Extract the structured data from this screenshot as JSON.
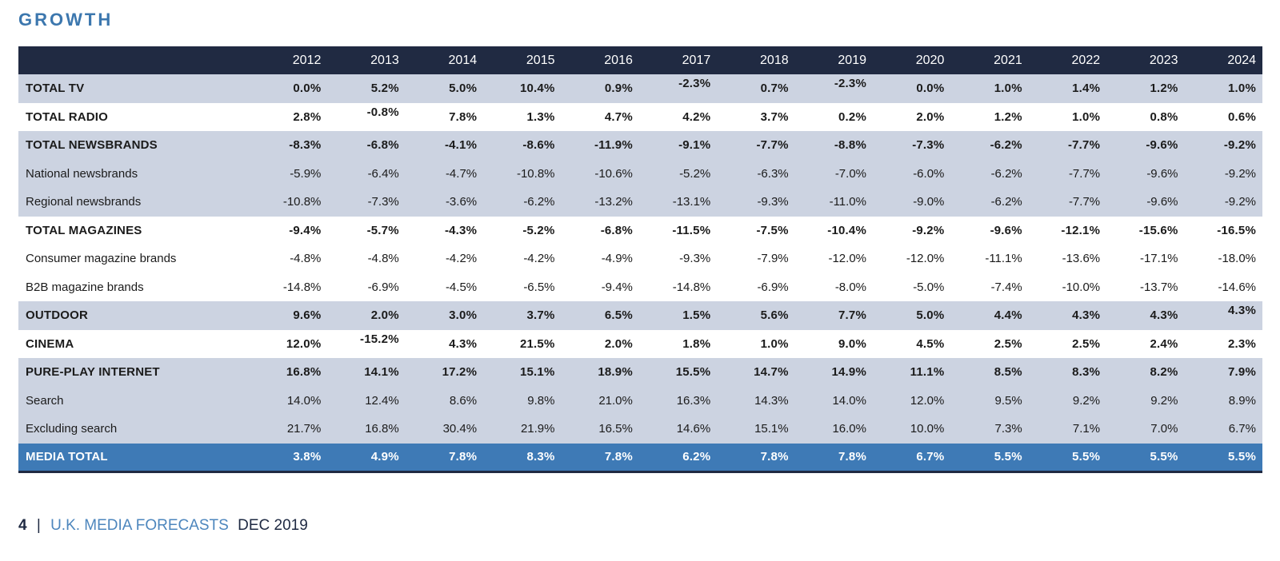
{
  "page": {
    "title": "GROWTH",
    "footer": {
      "page_number": "4",
      "separator": "|",
      "publication": "U.K. MEDIA FORECASTS",
      "edition": "DEC 2019"
    }
  },
  "colors": {
    "title_blue": "#3c77ae",
    "header_bg": "#202a42",
    "header_text": "#ffffff",
    "band_light": "#ccd3e1",
    "band_white": "#ffffff",
    "highlight_bg": "#3e7ab6",
    "highlight_text": "#ffffff",
    "text_dark": "#1b1b1b",
    "footer_dark": "#1e2942",
    "footer_link": "#4d86bd"
  },
  "chart_data": {
    "type": "table",
    "title": "GROWTH",
    "columns": [
      "2012",
      "2013",
      "2014",
      "2015",
      "2016",
      "2017",
      "2018",
      "2019",
      "2020",
      "2021",
      "2022",
      "2023",
      "2024"
    ],
    "rows": [
      {
        "label": "TOTAL TV",
        "emphasis": true,
        "band": "light",
        "values": [
          "0.0%",
          "5.2%",
          "5.0%",
          "10.4%",
          "0.9%",
          "-2.3%",
          "0.7%",
          "-2.3%",
          "0.0%",
          "1.0%",
          "1.4%",
          "1.2%",
          "1.0%"
        ],
        "raised": [
          5,
          7
        ]
      },
      {
        "label": "TOTAL RADIO",
        "emphasis": true,
        "band": "white",
        "values": [
          "2.8%",
          "-0.8%",
          "7.8%",
          "1.3%",
          "4.7%",
          "4.2%",
          "3.7%",
          "0.2%",
          "2.0%",
          "1.2%",
          "1.0%",
          "0.8%",
          "0.6%"
        ],
        "raised": [
          1
        ]
      },
      {
        "label": "TOTAL NEWSBRANDS",
        "emphasis": true,
        "band": "light",
        "values": [
          "-8.3%",
          "-6.8%",
          "-4.1%",
          "-8.6%",
          "-11.9%",
          "-9.1%",
          "-7.7%",
          "-8.8%",
          "-7.3%",
          "-6.2%",
          "-7.7%",
          "-9.6%",
          "-9.2%"
        ],
        "raised": []
      },
      {
        "label": "National newsbrands",
        "emphasis": false,
        "band": "light",
        "values": [
          "-5.9%",
          "-6.4%",
          "-4.7%",
          "-10.8%",
          "-10.6%",
          "-5.2%",
          "-6.3%",
          "-7.0%",
          "-6.0%",
          "-6.2%",
          "-7.7%",
          "-9.6%",
          "-9.2%"
        ],
        "raised": []
      },
      {
        "label": "Regional newsbrands",
        "emphasis": false,
        "band": "light",
        "values": [
          "-10.8%",
          "-7.3%",
          "-3.6%",
          "-6.2%",
          "-13.2%",
          "-13.1%",
          "-9.3%",
          "-11.0%",
          "-9.0%",
          "-6.2%",
          "-7.7%",
          "-9.6%",
          "-9.2%"
        ],
        "raised": []
      },
      {
        "label": "TOTAL MAGAZINES",
        "emphasis": true,
        "band": "white",
        "values": [
          "-9.4%",
          "-5.7%",
          "-4.3%",
          "-5.2%",
          "-6.8%",
          "-11.5%",
          "-7.5%",
          "-10.4%",
          "-9.2%",
          "-9.6%",
          "-12.1%",
          "-15.6%",
          "-16.5%"
        ],
        "raised": []
      },
      {
        "label": "Consumer magazine brands",
        "emphasis": false,
        "band": "white",
        "values": [
          "-4.8%",
          "-4.8%",
          "-4.2%",
          "-4.2%",
          "-4.9%",
          "-9.3%",
          "-7.9%",
          "-12.0%",
          "-12.0%",
          "-11.1%",
          "-13.6%",
          "-17.1%",
          "-18.0%"
        ],
        "raised": []
      },
      {
        "label": "B2B magazine brands",
        "emphasis": false,
        "band": "white",
        "values": [
          "-14.8%",
          "-6.9%",
          "-4.5%",
          "-6.5%",
          "-9.4%",
          "-14.8%",
          "-6.9%",
          "-8.0%",
          "-5.0%",
          "-7.4%",
          "-10.0%",
          "-13.7%",
          "-14.6%"
        ],
        "raised": []
      },
      {
        "label": "OUTDOOR",
        "emphasis": true,
        "band": "light",
        "values": [
          "9.6%",
          "2.0%",
          "3.0%",
          "3.7%",
          "6.5%",
          "1.5%",
          "5.6%",
          "7.7%",
          "5.0%",
          "4.4%",
          "4.3%",
          "4.3%",
          "4.3%"
        ],
        "raised": [
          12
        ]
      },
      {
        "label": "CINEMA",
        "emphasis": true,
        "band": "white",
        "values": [
          "12.0%",
          "-15.2%",
          "4.3%",
          "21.5%",
          "2.0%",
          "1.8%",
          "1.0%",
          "9.0%",
          "4.5%",
          "2.5%",
          "2.5%",
          "2.4%",
          "2.3%"
        ],
        "raised": [
          1
        ]
      },
      {
        "label": "PURE-PLAY INTERNET",
        "emphasis": true,
        "band": "light",
        "values": [
          "16.8%",
          "14.1%",
          "17.2%",
          "15.1%",
          "18.9%",
          "15.5%",
          "14.7%",
          "14.9%",
          "11.1%",
          "8.5%",
          "8.3%",
          "8.2%",
          "7.9%"
        ],
        "raised": []
      },
      {
        "label": "Search",
        "emphasis": false,
        "band": "light",
        "values": [
          "14.0%",
          "12.4%",
          "8.6%",
          "9.8%",
          "21.0%",
          "16.3%",
          "14.3%",
          "14.0%",
          "12.0%",
          "9.5%",
          "9.2%",
          "9.2%",
          "8.9%"
        ],
        "raised": []
      },
      {
        "label": "Excluding search",
        "emphasis": false,
        "band": "light",
        "values": [
          "21.7%",
          "16.8%",
          "30.4%",
          "21.9%",
          "16.5%",
          "14.6%",
          "15.1%",
          "16.0%",
          "10.0%",
          "7.3%",
          "7.1%",
          "7.0%",
          "6.7%"
        ],
        "raised": []
      },
      {
        "label": "MEDIA TOTAL",
        "emphasis": true,
        "band": "highlight",
        "values": [
          "3.8%",
          "4.9%",
          "7.8%",
          "8.3%",
          "7.8%",
          "6.2%",
          "7.8%",
          "7.8%",
          "6.7%",
          "5.5%",
          "5.5%",
          "5.5%",
          "5.5%"
        ],
        "raised": []
      }
    ]
  }
}
